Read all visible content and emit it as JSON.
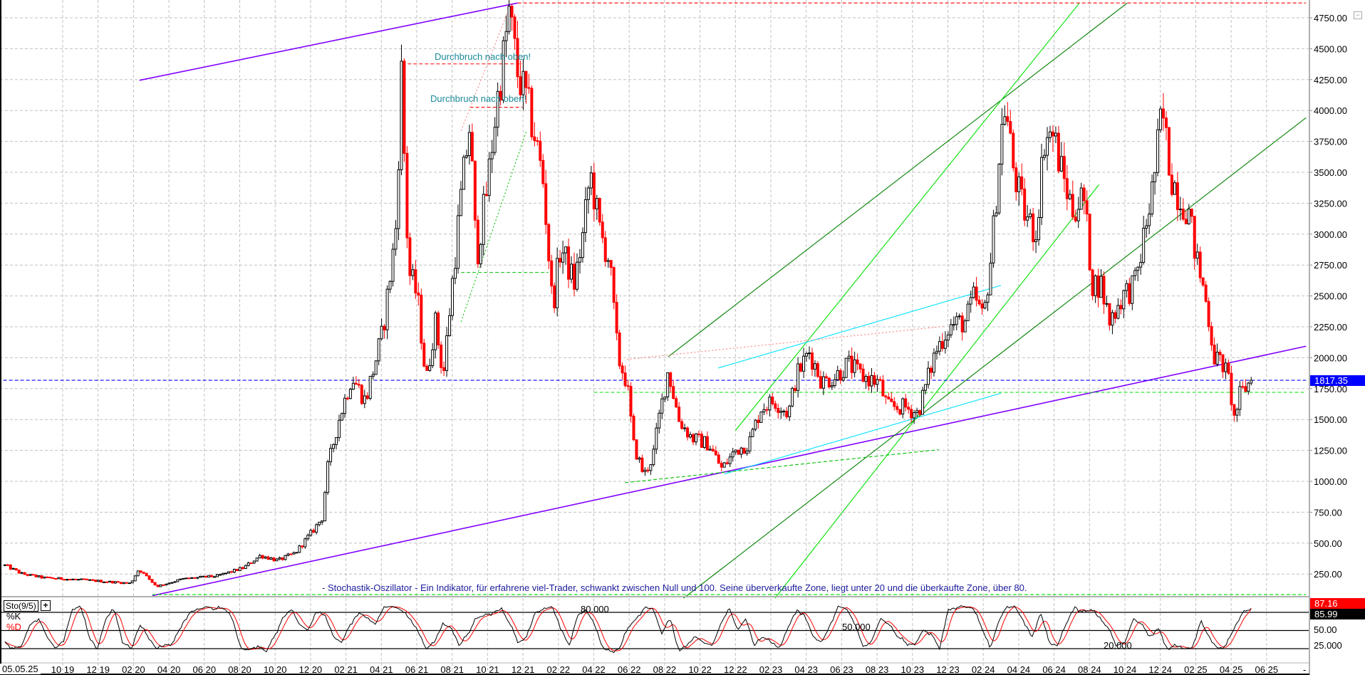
{
  "chart_data": {
    "type": "candlestick",
    "price_axis": {
      "ticks": [
        "250.00",
        "500.00",
        "750.00",
        "1000.00",
        "1250.00",
        "1500.00",
        "1750.00",
        "2000.00",
        "2250.00",
        "2500.00",
        "2750.00",
        "3000.00",
        "3250.00",
        "3500.00",
        "3750.00",
        "4000.00",
        "4250.00",
        "4500.00",
        "4750.00"
      ],
      "ylim": [
        0,
        4900
      ]
    },
    "date_axis": {
      "cursor_label": "05.05.25",
      "ticks": [
        "10 19",
        "12 19",
        "02 20",
        "04 20",
        "06 20",
        "08 20",
        "10 20",
        "12 20",
        "02 21",
        "04 21",
        "06 21",
        "08 21",
        "10 21",
        "12 21",
        "02 22",
        "04 22",
        "06 22",
        "08 22",
        "10 22",
        "12 22",
        "02 23",
        "04 23",
        "06 23",
        "08 23",
        "10 23",
        "12 23",
        "02 24",
        "04 24",
        "06 24",
        "08 24",
        "10 24",
        "12 24",
        "02 25",
        "04 25",
        "06 25"
      ],
      "end_marker": "-"
    },
    "last_price": "1817.35",
    "grid": true,
    "colors": {
      "up": "#000000",
      "down": "#ff0000",
      "last_price_bg": "#0000ff"
    },
    "price_path": [
      [
        "2019-06-23",
        320
      ],
      [
        "2019-07-23",
        250
      ],
      [
        "2019-08-29",
        220
      ],
      [
        "2019-11-12",
        200
      ],
      [
        "2020-01-26",
        175
      ],
      [
        "2020-02-10",
        290
      ],
      [
        "2020-03-10",
        150
      ],
      [
        "2020-04-24",
        210
      ],
      [
        "2020-06-23",
        235
      ],
      [
        "2020-08-07",
        300
      ],
      [
        "2020-09-06",
        400
      ],
      [
        "2020-10-06",
        360
      ],
      [
        "2020-11-05",
        420
      ],
      [
        "2020-12-05",
        600
      ],
      [
        "2020-12-23",
        720
      ],
      [
        "2020-12-27",
        1050
      ],
      [
        "2021-01-19",
        1500
      ],
      [
        "2021-02-11",
        1850
      ],
      [
        "2021-03-04",
        1650
      ],
      [
        "2021-04-03",
        2200
      ],
      [
        "2021-04-25",
        3000
      ],
      [
        "2021-05-05",
        4300
      ],
      [
        "2021-05-17",
        2700
      ],
      [
        "2021-06-02",
        2500
      ],
      [
        "2021-06-17",
        1800
      ],
      [
        "2021-07-02",
        2300
      ],
      [
        "2021-07-16",
        1850
      ],
      [
        "2021-08-01",
        2600
      ],
      [
        "2021-08-16",
        3300
      ],
      [
        "2021-09-01",
        3900
      ],
      [
        "2021-09-12",
        2800
      ],
      [
        "2021-10-01",
        3400
      ],
      [
        "2021-10-15",
        4000
      ],
      [
        "2021-10-30",
        4500
      ],
      [
        "2021-11-07",
        4800
      ],
      [
        "2021-11-22",
        4300
      ],
      [
        "2021-12-06",
        4100
      ],
      [
        "2021-12-21",
        3800
      ],
      [
        "2022-01-06",
        3400
      ],
      [
        "2022-01-21",
        2400
      ],
      [
        "2022-02-05",
        2900
      ],
      [
        "2022-02-28",
        2600
      ],
      [
        "2022-03-13",
        3000
      ],
      [
        "2022-03-25",
        3500
      ],
      [
        "2022-04-12",
        3000
      ],
      [
        "2022-04-27",
        2800
      ],
      [
        "2022-05-12",
        2000
      ],
      [
        "2022-05-27",
        1800
      ],
      [
        "2022-06-08",
        1300
      ],
      [
        "2022-06-26",
        1050
      ],
      [
        "2022-07-11",
        1200
      ],
      [
        "2022-07-21",
        1500
      ],
      [
        "2022-08-07",
        1900
      ],
      [
        "2022-08-25",
        1500
      ],
      [
        "2022-09-17",
        1350
      ],
      [
        "2022-10-16",
        1300
      ],
      [
        "2022-11-08",
        1100
      ],
      [
        "2022-12-01",
        1250
      ],
      [
        "2022-12-23",
        1300
      ],
      [
        "2023-01-15",
        1600
      ],
      [
        "2023-02-07",
        1650
      ],
      [
        "2023-03-01",
        1550
      ],
      [
        "2023-03-14",
        1850
      ],
      [
        "2023-04-06",
        2050
      ],
      [
        "2023-04-28",
        1800
      ],
      [
        "2023-05-20",
        1850
      ],
      [
        "2023-06-12",
        1950
      ],
      [
        "2023-07-05",
        1850
      ],
      [
        "2023-08-04",
        1800
      ],
      [
        "2023-08-19",
        1600
      ],
      [
        "2023-09-18",
        1600
      ],
      [
        "2023-10-10",
        1550
      ],
      [
        "2023-10-25",
        1800
      ],
      [
        "2023-11-10",
        2050
      ],
      [
        "2023-12-02",
        2250
      ],
      [
        "2024-01-02",
        2300
      ],
      [
        "2024-01-16",
        2500
      ],
      [
        "2024-02-01",
        2300
      ],
      [
        "2024-02-16",
        2900
      ],
      [
        "2024-03-01",
        3800
      ],
      [
        "2024-03-08",
        4050
      ],
      [
        "2024-03-23",
        3500
      ],
      [
        "2024-04-08",
        3200
      ],
      [
        "2024-04-30",
        3000
      ],
      [
        "2024-05-15",
        3800
      ],
      [
        "2024-05-30",
        3800
      ],
      [
        "2024-06-14",
        3500
      ],
      [
        "2024-07-02",
        3200
      ],
      [
        "2024-07-21",
        3300
      ],
      [
        "2024-08-06",
        2600
      ],
      [
        "2024-08-20",
        2600
      ],
      [
        "2024-09-05",
        2300
      ],
      [
        "2024-09-27",
        2500
      ],
      [
        "2024-10-19",
        2600
      ],
      [
        "2024-11-04",
        3000
      ],
      [
        "2024-11-19",
        3400
      ],
      [
        "2024-12-04",
        4000
      ],
      [
        "2024-12-18",
        3500
      ],
      [
        "2025-01-03",
        3300
      ],
      [
        "2025-01-18",
        3200
      ],
      [
        "2025-02-02",
        2800
      ],
      [
        "2025-02-17",
        2500
      ],
      [
        "2025-03-03",
        2000
      ],
      [
        "2025-03-17",
        1950
      ],
      [
        "2025-03-28",
        1800
      ],
      [
        "2025-04-06",
        1500
      ],
      [
        "2025-04-16",
        1700
      ],
      [
        "2025-05-05",
        1817.35
      ]
    ],
    "trend_lines": [
      {
        "color": "#8000ff",
        "style": "solid",
        "from": [
          "2020-02-11",
          4244
        ],
        "to": [
          "2021-11-22",
          4870
        ]
      },
      {
        "color": "#8000ff",
        "style": "solid",
        "from": [
          "2020-03-03",
          75
        ],
        "to": [
          "2025-08-08",
          2093
        ]
      },
      {
        "color": "#008000",
        "style": "solid",
        "from": [
          "2022-08-07",
          2008
        ],
        "to": [
          "2024-10-05",
          4870
        ]
      },
      {
        "color": "#008000",
        "style": "solid",
        "from": [
          "2022-09-03",
          54
        ],
        "to": [
          "2025-08-08",
          3942
        ]
      },
      {
        "color": "#00e000",
        "style": "solid",
        "from": [
          "2022-12-01",
          1411
        ],
        "to": [
          "2024-07-14",
          4870
        ]
      },
      {
        "color": "#00e000",
        "style": "solid",
        "from": [
          "2023-02-08",
          54
        ],
        "to": [
          "2024-08-17",
          3400
        ]
      },
      {
        "color": "#00e0ff",
        "style": "solid",
        "from": [
          "2022-11-02",
          1917
        ],
        "to": [
          "2024-03-01",
          2585
        ]
      },
      {
        "color": "#00e0ff",
        "style": "solid",
        "from": [
          "2022-11-12",
          1059
        ],
        "to": [
          "2024-03-01",
          1713
        ]
      },
      {
        "color": "#ff8080",
        "style": "dotted",
        "from": [
          "2022-05-27",
          1987
        ],
        "to": [
          "2023-11-25",
          2254
        ]
      },
      {
        "color": "#00c000",
        "style": "dashed",
        "from": [
          "2022-05-24",
          989
        ],
        "to": [
          "2023-11-15",
          1256
        ]
      },
      {
        "color": "#00c000",
        "style": "dashed",
        "from": [
          "2021-08-16",
          2690
        ],
        "to": [
          "2022-01-14",
          2690
        ]
      },
      {
        "color": "#00c000",
        "style": "dotted",
        "from": [
          "2021-08-16",
          2290
        ],
        "to": [
          "2021-12-07",
          3836
        ]
      },
      {
        "color": "#ff0000",
        "style": "dashed",
        "from": [
          "2021-11-22",
          4870
        ],
        "to": [
          "2025-08-08",
          4870
        ]
      },
      {
        "color": "#ff0000",
        "style": "dashed",
        "from": [
          "2021-05-06",
          4377
        ],
        "to": [
          "2021-11-30",
          4377
        ]
      },
      {
        "color": "#ff0000",
        "style": "solid",
        "from": [
          "2021-05-06",
          4377
        ],
        "to": [
          "2021-05-06",
          4190
        ]
      },
      {
        "color": "#ff0000",
        "style": "dashed",
        "from": [
          "2021-09-01",
          4026
        ],
        "to": [
          "2021-11-30",
          4026
        ]
      },
      {
        "color": "#ff8080",
        "style": "dotted",
        "from": [
          "2021-08-16",
          3836
        ],
        "to": [
          "2021-11-07",
          4820
        ]
      },
      {
        "color": "#00e000",
        "style": "dashed",
        "from": [
          "2020-03-03",
          84
        ],
        "to": [
          "2025-08-08",
          84
        ]
      },
      {
        "color": "#00e000",
        "style": "dashed",
        "from": [
          "2022-04-01",
          1720
        ],
        "to": [
          "2025-08-08",
          1720
        ]
      },
      {
        "color": "#0000ff",
        "style": "dashed",
        "from": [
          "2019-06-01",
          1817.35
        ],
        "to": [
          "2025-08-08",
          1817.35
        ]
      }
    ],
    "annotations": [
      "Durchbruch nach oben!",
      "Durchbruch nach oben!"
    ],
    "stochastic": {
      "name": "Sto(9/5)",
      "k_label": "%K",
      "d_label": "%D",
      "level_labels": [
        "80.000",
        "50.000",
        "20.000"
      ],
      "axis_labels": [
        "50.00",
        "25.000"
      ],
      "k_last": "85.99",
      "d_last": "87.16",
      "levels": [
        80,
        50,
        20
      ],
      "k_values": [
        30,
        20,
        25,
        60,
        70,
        40,
        20,
        35,
        85,
        90,
        40,
        20,
        70,
        85,
        30,
        20,
        60,
        40,
        20,
        25,
        30,
        60,
        80,
        85,
        90,
        85,
        88,
        70,
        20,
        18,
        25,
        15,
        40,
        70,
        85,
        60,
        50,
        80,
        75,
        40,
        30,
        60,
        80,
        70,
        60,
        88,
        90,
        85,
        70,
        50,
        20,
        30,
        60,
        55,
        25,
        45,
        70,
        75,
        80,
        85,
        60,
        30,
        40,
        80,
        85,
        90,
        55,
        25,
        75,
        85,
        60,
        20,
        15,
        20,
        55,
        70,
        88,
        85,
        45,
        70,
        15,
        25,
        40,
        30,
        25,
        60,
        88,
        50,
        70,
        25,
        40,
        30,
        20,
        55,
        85,
        75,
        40,
        30,
        60,
        90,
        85,
        60,
        20,
        35,
        70,
        60,
        40,
        30,
        25,
        50,
        45,
        20,
        85,
        88,
        90,
        86,
        55,
        20,
        65,
        90,
        88,
        65,
        40,
        80,
        30,
        25,
        60,
        90,
        80,
        85,
        70,
        55,
        25,
        30,
        70,
        60,
        40,
        55,
        20,
        25,
        20,
        22,
        65,
        40,
        20,
        25,
        55,
        80,
        86
      ]
    },
    "description_text": "- Stochastik-Oszillator - Ein Indikator, für erfahrene viel-Trader, schwankt zwischen Null und 100. Seine überverkaufte Zone, liegt unter 20 und die überkaufte Zone, über 80."
  }
}
